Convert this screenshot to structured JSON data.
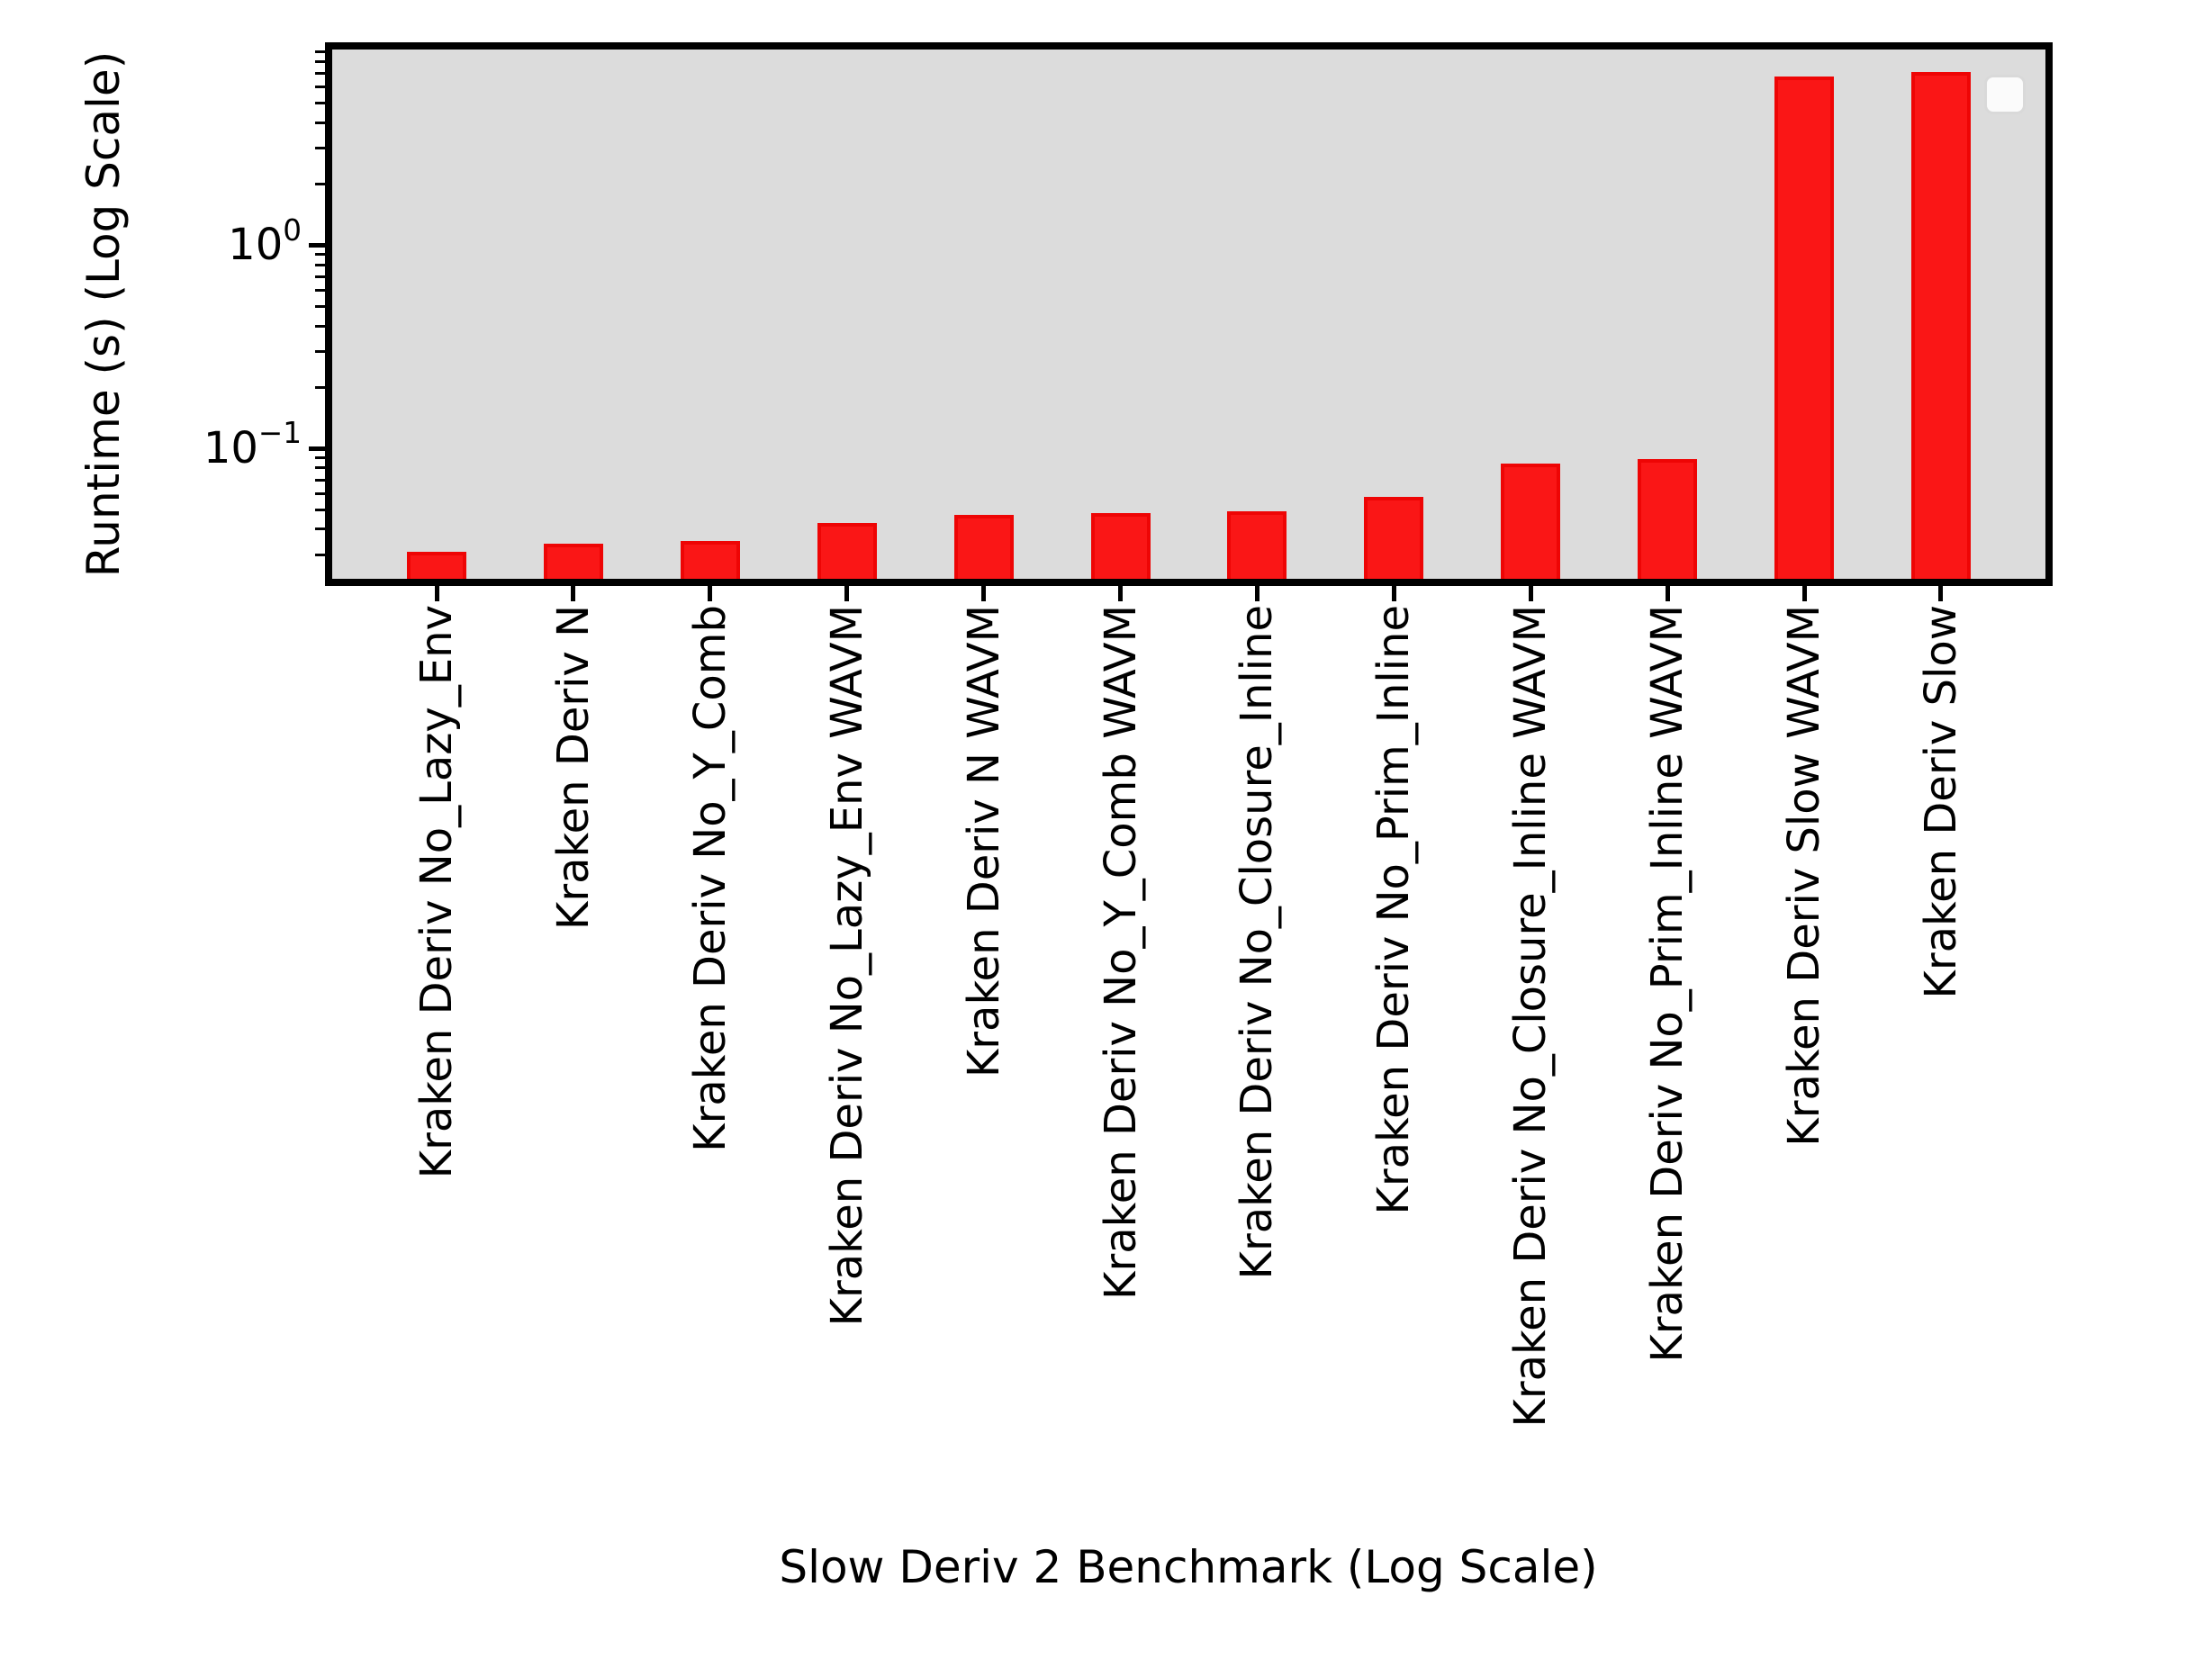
{
  "chart_data": {
    "type": "bar",
    "title": "",
    "xlabel": "Slow Deriv 2 Benchmark (Log Scale)",
    "ylabel": "Runtime (s) (Log Scale)",
    "yscale": "log",
    "ylim": [
      0.0228,
      9.2
    ],
    "grid": false,
    "legend": {
      "visible": true,
      "entries": [],
      "position": "upper right"
    },
    "categories": [
      "Kraken Deriv No_Lazy_Env",
      "Kraken Deriv N",
      "Kraken Deriv No_Y_Comb",
      "Kraken Deriv No_Lazy_Env WAVM",
      "Kraken Deriv N WAVM",
      "Kraken Deriv No_Y_Comb WAVM",
      "Kraken Deriv No_Closure_Inline",
      "Kraken Deriv No_Prim_Inline",
      "Kraken Deriv No_Closure_Inline WAVM",
      "Kraken Deriv No_Prim_Inline WAVM",
      "Kraken Deriv Slow WAVM",
      "Kraken Deriv Slow"
    ],
    "values": [
      0.031,
      0.034,
      0.035,
      0.043,
      0.047,
      0.048,
      0.049,
      0.058,
      0.084,
      0.089,
      6.8,
      7.1
    ],
    "yticks": [
      {
        "base": "10",
        "exp": "0",
        "value": 1
      },
      {
        "base": "10",
        "exp": "−1",
        "value": 0.1
      }
    ],
    "colors": {
      "bar_fill": "#fa1616",
      "bar_edge": "#ee0505",
      "plot_background": "#dcdcdc",
      "figure_background": "#ffffff",
      "axis": "#000000",
      "legend_background": "#fbfbfb",
      "legend_border": "#d9d9d9"
    }
  }
}
